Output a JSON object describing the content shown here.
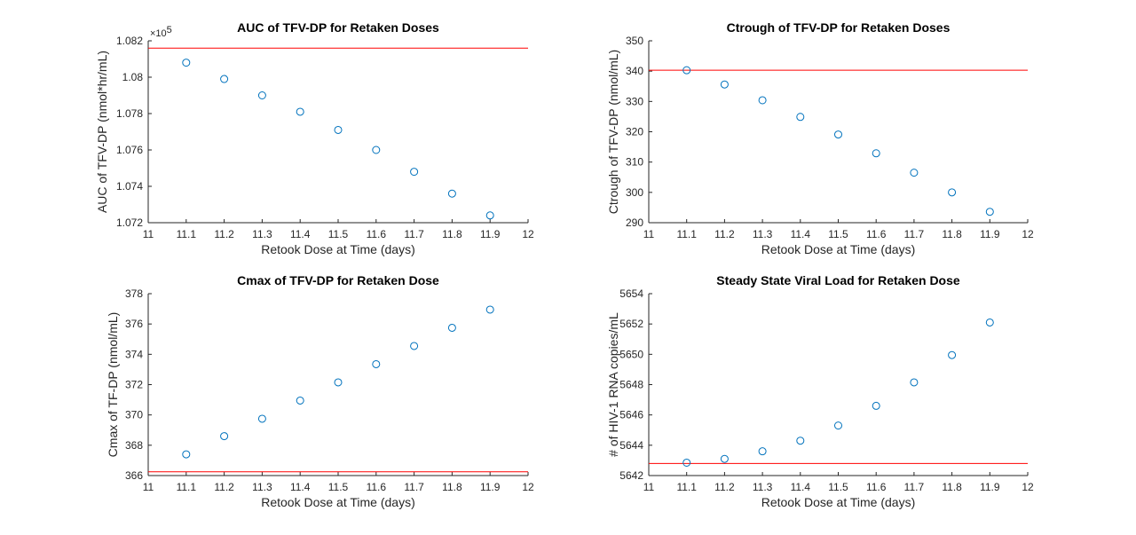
{
  "chart_data": [
    {
      "type": "scatter",
      "title": "AUC of TFV-DP for Retaken Doses",
      "xlabel": "Retook Dose at Time (days)",
      "ylabel": "AUC of TFV-DP (nmol*hr/mL)",
      "xlim": [
        11,
        12
      ],
      "ylim": [
        1.072,
        1.082
      ],
      "y_multiplier": "×10",
      "y_multiplier_exp": "5",
      "xticks": [
        "11",
        "11.1",
        "11.2",
        "11.3",
        "11.4",
        "11.5",
        "11.6",
        "11.7",
        "11.8",
        "11.9",
        "12"
      ],
      "yticks": [
        "1.072",
        "1.074",
        "1.076",
        "1.078",
        "1.08",
        "1.082"
      ],
      "x": [
        11.1,
        11.2,
        11.3,
        11.4,
        11.5,
        11.6,
        11.7,
        11.8,
        11.9
      ],
      "y": [
        1.0808,
        1.0799,
        1.079,
        1.0781,
        1.0771,
        1.076,
        1.0748,
        1.0736,
        1.0724
      ],
      "reference_line": 1.0816,
      "marker_color": "#0072BD",
      "line_color": "#FF0000",
      "grid": false
    },
    {
      "type": "scatter",
      "title": "Ctrough of TFV-DP for Retaken Doses",
      "xlabel": "Retook Dose at Time (days)",
      "ylabel": "Ctrough of TFV-DP (nmol/mL)",
      "xlim": [
        11,
        12
      ],
      "ylim": [
        290,
        350
      ],
      "xticks": [
        "11",
        "11.1",
        "11.2",
        "11.3",
        "11.4",
        "11.5",
        "11.6",
        "11.7",
        "11.8",
        "11.9",
        "12"
      ],
      "yticks": [
        "290",
        "300",
        "310",
        "320",
        "330",
        "340",
        "350"
      ],
      "x": [
        11.1,
        11.2,
        11.3,
        11.4,
        11.5,
        11.6,
        11.7,
        11.8,
        11.9
      ],
      "y": [
        340.3,
        335.6,
        330.4,
        324.9,
        319.1,
        312.9,
        306.5,
        300.0,
        293.6
      ],
      "reference_line": 340.3,
      "marker_color": "#0072BD",
      "line_color": "#FF0000",
      "grid": false
    },
    {
      "type": "scatter",
      "title": "Cmax of TFV-DP for Retaken Dose",
      "xlabel": "Retook Dose at Time (days)",
      "ylabel": "Cmax of TF-DP (nmol/mL)",
      "xlim": [
        11,
        12
      ],
      "ylim": [
        366,
        378
      ],
      "xticks": [
        "11",
        "11.1",
        "11.2",
        "11.3",
        "11.4",
        "11.5",
        "11.6",
        "11.7",
        "11.8",
        "11.9",
        "12"
      ],
      "yticks": [
        "366",
        "368",
        "370",
        "372",
        "374",
        "376",
        "378"
      ],
      "x": [
        11.1,
        11.2,
        11.3,
        11.4,
        11.5,
        11.6,
        11.7,
        11.8,
        11.9
      ],
      "y": [
        367.4,
        368.6,
        369.75,
        370.95,
        372.15,
        373.35,
        374.55,
        375.75,
        376.95
      ],
      "reference_line": 366.25,
      "marker_color": "#0072BD",
      "line_color": "#FF0000",
      "grid": false
    },
    {
      "type": "scatter",
      "title": "Steady State Viral Load for Retaken Dose",
      "xlabel": "Retook Dose at Time (days)",
      "ylabel": "# of HIV-1 RNA copies/mL",
      "xlim": [
        11,
        12
      ],
      "ylim": [
        5642,
        5654
      ],
      "xticks": [
        "11",
        "11.1",
        "11.2",
        "11.3",
        "11.4",
        "11.5",
        "11.6",
        "11.7",
        "11.8",
        "11.9",
        "12"
      ],
      "yticks": [
        "5642",
        "5644",
        "5646",
        "5648",
        "5650",
        "5652",
        "5654"
      ],
      "x": [
        11.1,
        11.2,
        11.3,
        11.4,
        11.5,
        11.6,
        11.7,
        11.8,
        11.9
      ],
      "y": [
        5642.85,
        5643.1,
        5643.6,
        5644.3,
        5645.3,
        5646.6,
        5648.15,
        5649.95,
        5652.1
      ],
      "reference_line": 5642.8,
      "marker_color": "#0072BD",
      "line_color": "#FF0000",
      "grid": false
    }
  ]
}
